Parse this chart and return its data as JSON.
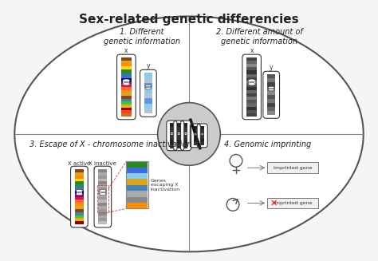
{
  "title": "Sex-related genetic differencies",
  "title_fontsize": 11,
  "background_color": "#f5f5f5",
  "section_labels": [
    "1. Different\ngenetic information",
    "2. Different amount of\ngenetic information",
    "3. Escape of X - chromosome inactivation",
    "4. Genomic imprinting"
  ],
  "label_fontsize": 7,
  "x_bands_color": [
    "#8B4513",
    "#DAA520",
    "#FF8C00",
    "#FFD700",
    "#228B22",
    "#2E8B57",
    "#4169E1",
    "#000080",
    "#8B008B",
    "#DC143C",
    "#FF6347",
    "#FF8C00",
    "#DAA520",
    "#8B4513",
    "#4682B4",
    "#32CD32",
    "#FFA500",
    "#8B0000",
    "#FF4500",
    "#D2691E"
  ],
  "y_bands_color": [
    "#87CEEB",
    "#B0C4DE",
    "#6495ED",
    "#87CEEB",
    "#B0C4DE",
    "#6495ED",
    "#87CEEB",
    "#B0C4DE"
  ],
  "grey_bands_dark": [
    "#444444",
    "#666666",
    "#888888",
    "#555555",
    "#333333",
    "#666666",
    "#444444",
    "#777777",
    "#555555",
    "#333333",
    "#666666",
    "#444444",
    "#777777",
    "#555555",
    "#666666",
    "#333333",
    "#555555",
    "#444444"
  ],
  "grey_bands_small": [
    "#555555",
    "#777777",
    "#444444",
    "#666666",
    "#888888",
    "#555555",
    "#777777",
    "#444444",
    "#666666",
    "#888888"
  ],
  "inactive_bands": [
    "#888888",
    "#aaaaaa",
    "#999999",
    "#bbbbbb",
    "#888888",
    "#aaaaaa",
    "#999999",
    "#888888",
    "#aaaaaa",
    "#999999",
    "#bbbbbb",
    "#888888",
    "#aaaaaa",
    "#999999",
    "#888888",
    "#aaaaaa",
    "#999999",
    "#bbbbbb"
  ],
  "escape_colors": [
    "#228B22",
    "#4169E1",
    "#87CEEB",
    "#DAA520",
    "#4682B4",
    "#aaaaaa",
    "#888888",
    "#FF8C00"
  ],
  "center_dark_bands": [
    "#222222",
    "#333333",
    "#222222",
    "#333333",
    "#222222",
    "#333333"
  ]
}
